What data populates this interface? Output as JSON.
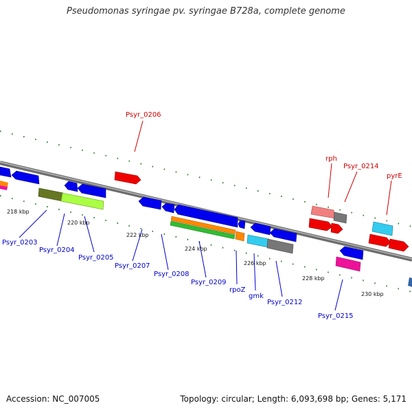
{
  "title": "Pseudomonas syringae pv. syringae B728a, complete genome",
  "footer": {
    "accession": "Accession: NC_007005",
    "summary": "Topology: circular; Length: 6,093,698 bp; Genes: 5,171"
  },
  "ticks": [
    "218 kbp",
    "220 kbp",
    "222 kbp",
    "224 kbp",
    "226 kbp",
    "228 kbp",
    "230 kbp"
  ],
  "genes_top": [
    {
      "name": "Psyr_0206",
      "color": "#cc0000"
    },
    {
      "name": "rph",
      "color": "#cc0000"
    },
    {
      "name": "Psyr_0214",
      "color": "#cc0000"
    },
    {
      "name": "pyrE",
      "color": "#cc0000"
    }
  ],
  "genes_bottom": [
    {
      "name": "Psyr_0203",
      "color": "#0000cc"
    },
    {
      "name": "Psyr_0204",
      "color": "#0000cc"
    },
    {
      "name": "Psyr_0205",
      "color": "#0000cc"
    },
    {
      "name": "Psyr_0207",
      "color": "#0000cc"
    },
    {
      "name": "Psyr_0208",
      "color": "#0000cc"
    },
    {
      "name": "Psyr_0209",
      "color": "#0000cc"
    },
    {
      "name": "rpoZ",
      "color": "#0000cc"
    },
    {
      "name": "gmk",
      "color": "#0000cc"
    },
    {
      "name": "Psyr_0212",
      "color": "#0000cc"
    },
    {
      "name": "Psyr_0215",
      "color": "#0000cc"
    }
  ]
}
